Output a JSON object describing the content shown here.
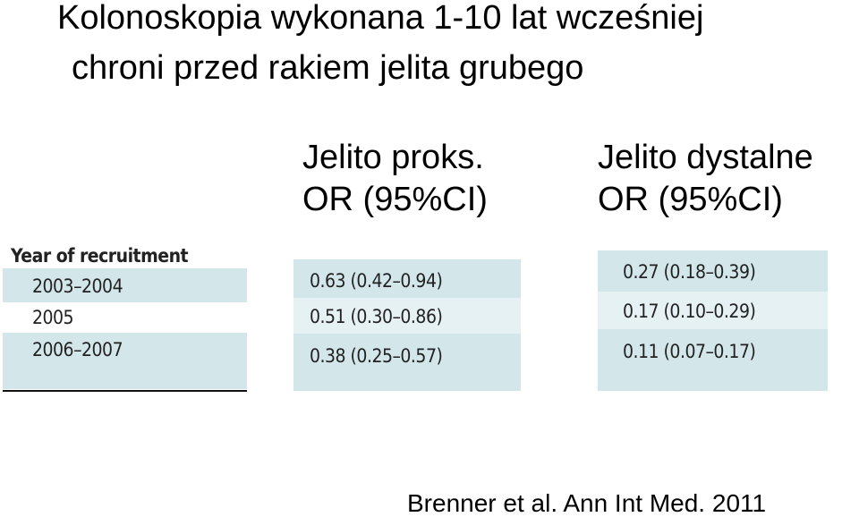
{
  "title": {
    "line1": "Kolonoskopia wykonana 1-10 lat wcześniej",
    "line2": "chroni przed rakiem jelita grubego"
  },
  "columns": [
    {
      "line1": "Jelito proks.",
      "line2": "OR (95%CI)"
    },
    {
      "line1": "Jelito dystalne",
      "line2": "OR (95%CI)"
    }
  ],
  "table": {
    "header": "Year of recruitment",
    "rows": [
      [
        "2003–2004",
        "0.63 (0.42–0.94)",
        "0.27 (0.18–0.39)"
      ],
      [
        "2005",
        "0.51 (0.30–0.86)",
        "0.17 (0.10–0.29)"
      ],
      [
        "2006–2007",
        "0.38 (0.25–0.57)",
        "0.11 (0.07–0.17)"
      ]
    ]
  },
  "citation": "Brenner  et al. Ann Int Med. 2011"
}
